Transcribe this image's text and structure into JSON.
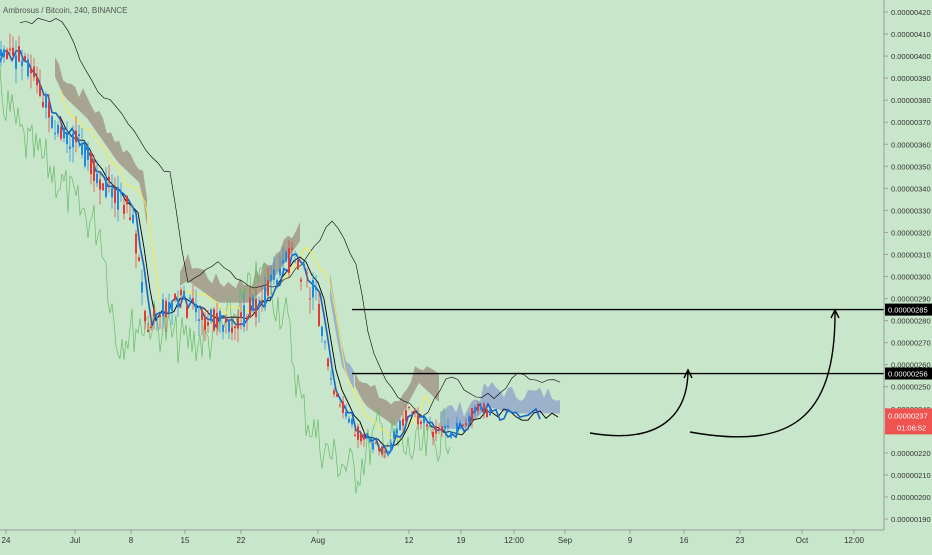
{
  "header": {
    "symbol_line": "Ambrosus / Bitcoin, 240, BINANCE"
  },
  "colors": {
    "background": "#c8e6c9",
    "price_up": "#1e88e5",
    "price_down": "#e53935",
    "tenkan": "#1565c0",
    "kijun": "#000000",
    "span_a": "#ffeb3b",
    "chikou": "#66bb6a",
    "cloud_bear": "#8d6e63",
    "cloud_bull": "#7986cb",
    "price_tag": "#ef5350"
  },
  "chart_data": {
    "type": "line",
    "indicator": "Ichimoku cloud",
    "yaxis": {
      "scale": "linear",
      "ticks": [
        "0.00000420",
        "0.00000410",
        "0.00000400",
        "0.00000390",
        "0.00000380",
        "0.00000370",
        "0.00000360",
        "0.00000350",
        "0.00000340",
        "0.00000330",
        "0.00000320",
        "0.00000310",
        "0.00000300",
        "0.00000290",
        "0.00000280",
        "0.00000270",
        "0.00000260",
        "0.00000250",
        "0.00000240",
        "0.00000230",
        "0.00000220",
        "0.00000210",
        "0.00000200",
        "0.00000190"
      ],
      "range": [
        1.83e-06,
        4.23e-06
      ]
    },
    "xaxis": {
      "ticks": [
        "24",
        "Jul",
        "8",
        "15",
        "22",
        "Aug",
        "12",
        "19",
        "12:00",
        "Sep",
        "9",
        "16",
        "23",
        "Oct",
        "12:00"
      ]
    },
    "grid": false,
    "price_series": [
      [
        "2019-06-21",
        4e-06
      ],
      [
        "2019-06-24",
        4e-06
      ],
      [
        "2019-06-28",
        3.7e-06
      ],
      [
        "2019-07-01",
        3.6e-06
      ],
      [
        "2019-07-05",
        3.4e-06
      ],
      [
        "2019-07-08",
        3.3e-06
      ],
      [
        "2019-07-10",
        2.8e-06
      ],
      [
        "2019-07-14",
        2.9e-06
      ],
      [
        "2019-07-18",
        2.8e-06
      ],
      [
        "2019-07-22",
        2.8e-06
      ],
      [
        "2019-07-25",
        2.9e-06
      ],
      [
        "2019-07-29",
        3.1e-06
      ],
      [
        "2019-08-01",
        2.9e-06
      ],
      [
        "2019-08-03",
        2.5e-06
      ],
      [
        "2019-08-06",
        2.3e-06
      ],
      [
        "2019-08-10",
        2.2e-06
      ],
      [
        "2019-08-13",
        2.4e-06
      ],
      [
        "2019-08-16",
        2.3e-06
      ],
      [
        "2019-08-19",
        2.3e-06
      ],
      [
        "2019-08-22",
        2.4e-06
      ],
      [
        "2019-08-25",
        2.37e-06
      ]
    ],
    "levels": [
      {
        "label": "0.00000285",
        "value": 2.85e-06
      },
      {
        "label": "0.00000256",
        "value": 2.56e-06
      }
    ],
    "current_price": {
      "label": "0.00000237",
      "value": 2.37e-06,
      "countdown": "01:06:52"
    }
  }
}
